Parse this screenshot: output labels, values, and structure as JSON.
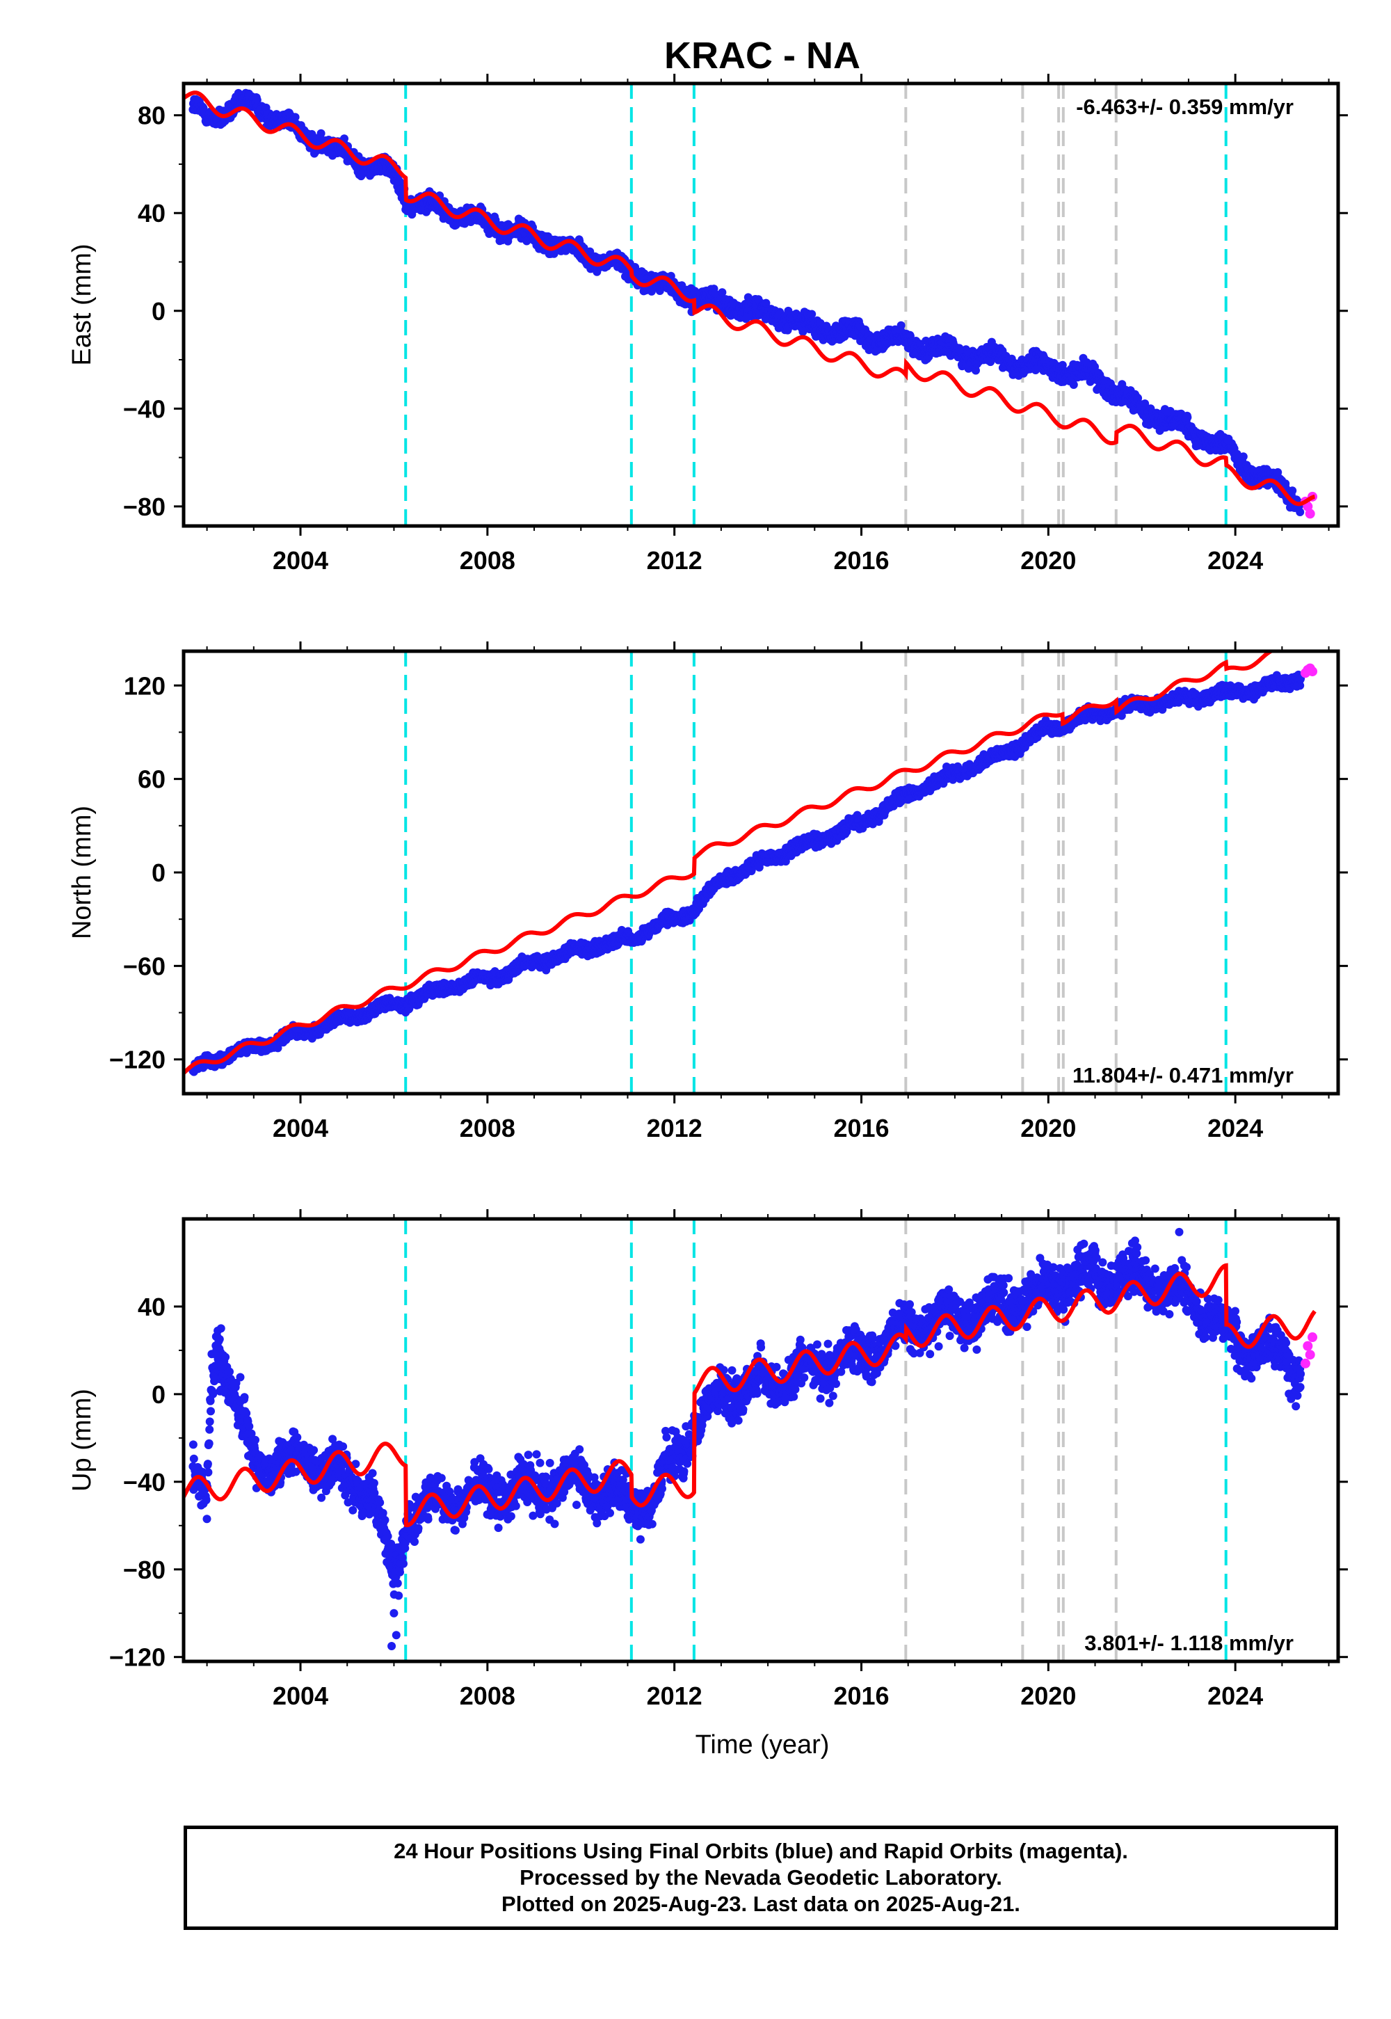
{
  "chart_data": {
    "type": "scatter",
    "title": "KRAC - NA",
    "xlabel": "Time (year)",
    "x_range": [
      2001.5,
      2026.2
    ],
    "x_ticks": [
      2004,
      2008,
      2012,
      2016,
      2020,
      2024
    ],
    "x_tick_labels": [
      "2004",
      "2008",
      "2012",
      "2016",
      "2020",
      "2024"
    ],
    "event_lines": [
      {
        "year": 2006.25,
        "color": "#00e5e5",
        "kind": "cyan"
      },
      {
        "year": 2011.08,
        "color": "#00e5e5",
        "kind": "cyan"
      },
      {
        "year": 2012.42,
        "color": "#00e5e5",
        "kind": "cyan"
      },
      {
        "year": 2016.95,
        "color": "#c8c8c8",
        "kind": "gray"
      },
      {
        "year": 2019.45,
        "color": "#c8c8c8",
        "kind": "gray"
      },
      {
        "year": 2020.22,
        "color": "#c8c8c8",
        "kind": "gray"
      },
      {
        "year": 2020.32,
        "color": "#c8c8c8",
        "kind": "gray"
      },
      {
        "year": 2021.45,
        "color": "#c8c8c8",
        "kind": "gray"
      },
      {
        "year": 2023.8,
        "color": "#00e5e5",
        "kind": "cyan"
      }
    ],
    "colors": {
      "final": "#1e1ef0",
      "rapid": "#ff28ff",
      "model": "#ff0000",
      "frame": "#000000"
    },
    "panels": [
      {
        "name": "East",
        "ylabel": "East (mm)",
        "ylim": [
          -88,
          93
        ],
        "y_ticks": [
          -80,
          -40,
          0,
          40,
          80
        ],
        "y_tick_labels": [
          "−80",
          "−40",
          "0",
          "40",
          "80"
        ],
        "rate_label": "-6.463+/- 0.359 mm/yr",
        "rate_position": "top-right",
        "velocity": -6.463,
        "series": [
          {
            "name": "Final Orbits (blue)",
            "color": "#1e1ef0",
            "x": [
              2001.7,
              2002.0,
              2002.5,
              2003.0,
              2003.5,
              2004.0,
              2004.5,
              2005.0,
              2005.5,
              2006.0,
              2006.3,
              2007.0,
              2008.0,
              2009.0,
              2010.0,
              2011.0,
              2011.5,
              2012.4,
              2013.0,
              2014.0,
              2015.0,
              2016.0,
              2017.0,
              2018.0,
              2019.0,
              2020.0,
              2021.0,
              2021.5,
              2022.0,
              2023.0,
              2023.8,
              2024.5,
              2025.0,
              2025.4
            ],
            "y": [
              83,
              79,
              82,
              85,
              79,
              73,
              68,
              64,
              59,
              57,
              45,
              42,
              36,
              30,
              24,
              17,
              12,
              6,
              3,
              -1,
              -7,
              -10,
              -13,
              -17,
              -20,
              -23,
              -27,
              -33,
              -41,
              -48,
              -56,
              -68,
              -73,
              -79
            ]
          },
          {
            "name": "Rapid Orbits (magenta)",
            "color": "#ff28ff",
            "x": [
              2025.5,
              2025.55,
              2025.6,
              2025.65
            ],
            "y": [
              -78,
              -80,
              -83,
              -76
            ]
          }
        ],
        "model": {
          "x0": 2001.5,
          "y0": 88.0,
          "breaks": [
            [
              2006.25,
              -9
            ],
            [
              2011.08,
              -2
            ],
            [
              2012.42,
              -5
            ],
            [
              2016.95,
              5
            ],
            [
              2021.45,
              4
            ],
            [
              2023.8,
              -3
            ]
          ],
          "amp": 3.0,
          "phase": 0.55
        }
      },
      {
        "name": "North",
        "ylabel": "North (mm)",
        "ylim": [
          -142,
          142
        ],
        "y_ticks": [
          -120,
          -60,
          0,
          60,
          120
        ],
        "y_tick_labels": [
          "−120",
          "−60",
          "0",
          "60",
          "120"
        ],
        "rate_label": "11.804+/- 0.471 mm/yr",
        "rate_position": "bottom-right",
        "velocity": 11.804,
        "series": [
          {
            "name": "Final Orbits (blue)",
            "color": "#1e1ef0",
            "x": [
              2001.7,
              2002.0,
              2003.0,
              2004.0,
              2005.0,
              2006.0,
              2006.3,
              2007.0,
              2008.0,
              2009.0,
              2010.0,
              2011.0,
              2012.0,
              2012.4,
              2013.0,
              2014.0,
              2015.0,
              2016.0,
              2017.0,
              2018.0,
              2019.0,
              2020.0,
              2021.0,
              2022.0,
              2023.0,
              2024.0,
              2025.0,
              2025.4
            ],
            "y": [
              -128,
              -122,
              -112,
              -103,
              -93,
              -85,
              -83,
              -75,
              -68,
              -58,
              -49,
              -43,
              -30,
              -24,
              -5,
              9,
              20,
              32,
              50,
              63,
              76,
              92,
              102,
              108,
              112,
              116,
              121,
              126
            ]
          },
          {
            "name": "Rapid Orbits (magenta)",
            "color": "#ff28ff",
            "x": [
              2025.5,
              2025.55,
              2025.6,
              2025.65
            ],
            "y": [
              128,
              130,
              131,
              129
            ]
          }
        ],
        "model": {
          "x0": 2001.5,
          "y0": -128.0,
          "breaks": [
            [
              2006.25,
              0
            ],
            [
              2012.42,
              10
            ],
            [
              2016.95,
              0
            ],
            [
              2020.3,
              -6
            ],
            [
              2021.45,
              -7
            ],
            [
              2023.8,
              -4
            ]
          ],
          "amp": 2.5,
          "phase": 0.55
        }
      },
      {
        "name": "Up",
        "ylabel": "Up (mm)",
        "ylim": [
          -122,
          80
        ],
        "y_ticks": [
          -120,
          -80,
          -40,
          0,
          40
        ],
        "y_tick_labels": [
          "−120",
          "−80",
          "−40",
          "0",
          "40"
        ],
        "rate_label": "3.801+/- 1.118 mm/yr",
        "rate_position": "bottom-right",
        "velocity": 3.801,
        "series": [
          {
            "name": "Final Orbits (blue)",
            "color": "#1e1ef0",
            "x": [
              2001.7,
              2002.0,
              2002.1,
              2002.2,
              2003.0,
              2004.0,
              2005.0,
              2005.5,
              2006.0,
              2006.3,
              2007.0,
              2008.0,
              2009.0,
              2010.0,
              2011.0,
              2011.5,
              2012.0,
              2012.4,
              2013.0,
              2014.0,
              2015.0,
              2016.0,
              2017.0,
              2018.0,
              2019.0,
              2020.0,
              2021.0,
              2022.0,
              2023.0,
              2023.5,
              2024.0,
              2025.0,
              2025.4
            ],
            "y": [
              -42,
              -46,
              10,
              25,
              -32,
              -30,
              -38,
              -45,
              -85,
              -55,
              -50,
              -45,
              -42,
              -40,
              -50,
              -48,
              -30,
              -15,
              0,
              5,
              12,
              18,
              30,
              35,
              40,
              48,
              55,
              52,
              45,
              35,
              25,
              18,
              10
            ]
          },
          {
            "name": "Rapid Orbits (magenta)",
            "color": "#ff28ff",
            "x": [
              2025.5,
              2025.55,
              2025.6,
              2025.65
            ],
            "y": [
              14,
              22,
              18,
              26
            ]
          }
        ],
        "model": {
          "x0": 2001.5,
          "y0": -45.0,
          "breaks": [
            [
              2006.25,
              -27
            ],
            [
              2011.08,
              -10
            ],
            [
              2012.42,
              45
            ],
            [
              2016.95,
              5
            ],
            [
              2023.8,
              -27
            ]
          ],
          "amp": 6.0,
          "phase": 0.55
        }
      }
    ]
  },
  "footer": {
    "line1": "24 Hour Positions Using Final Orbits (blue) and Rapid Orbits (magenta).",
    "line2": "Processed by the Nevada Geodetic Laboratory.",
    "line3": "Plotted on 2025-Aug-23. Last data on 2025-Aug-21."
  }
}
